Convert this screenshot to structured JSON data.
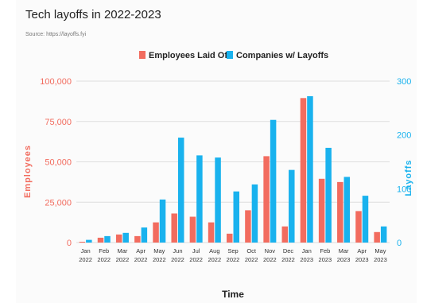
{
  "title": "Tech layoffs in 2022-2023",
  "source": "Source: https://layoffs.fyi",
  "colors": {
    "employees": "#f26c5f",
    "companies": "#19b2ee",
    "grid": "#dedede",
    "axis_text": "#333333"
  },
  "chart_data": {
    "type": "bar",
    "title": "Tech layoffs in 2022-2023",
    "xlabel": "Time",
    "ylabel": "Employees",
    "y2label": "Layoffs",
    "legend_position": "top-center",
    "grid": true,
    "ylim": [
      0,
      100000
    ],
    "y2lim": [
      0,
      300
    ],
    "yticks": [
      "0",
      "25,000",
      "50,000",
      "75,000",
      "100,000"
    ],
    "y2ticks": [
      "0",
      "100",
      "200",
      "300"
    ],
    "categories": [
      [
        "Jan",
        "2022"
      ],
      [
        "Feb",
        "2022"
      ],
      [
        "Mar",
        "2022"
      ],
      [
        "Apr",
        "2022"
      ],
      [
        "May",
        "2022"
      ],
      [
        "Jun",
        "2022"
      ],
      [
        "Jul",
        "2022"
      ],
      [
        "Aug",
        "2022"
      ],
      [
        "Sep",
        "2022"
      ],
      [
        "Oct",
        "2022"
      ],
      [
        "Nov",
        "2022"
      ],
      [
        "Dec",
        "2022"
      ],
      [
        "Jan",
        "2023"
      ],
      [
        "Feb",
        "2023"
      ],
      [
        "Mar",
        "2023"
      ],
      [
        "Apr",
        "2023"
      ],
      [
        "May",
        "2023"
      ]
    ],
    "series": [
      {
        "name": "Employees Laid Off",
        "axis": "left",
        "values": [
          500,
          3000,
          5000,
          4000,
          12500,
          18000,
          16000,
          12500,
          5500,
          20000,
          53500,
          10000,
          89500,
          39500,
          37500,
          19500,
          6500
        ]
      },
      {
        "name": "Companies w/ Layoffs",
        "axis": "right",
        "values": [
          5,
          12,
          18,
          28,
          80,
          195,
          162,
          158,
          95,
          108,
          228,
          135,
          272,
          176,
          122,
          87,
          30
        ]
      }
    ]
  }
}
